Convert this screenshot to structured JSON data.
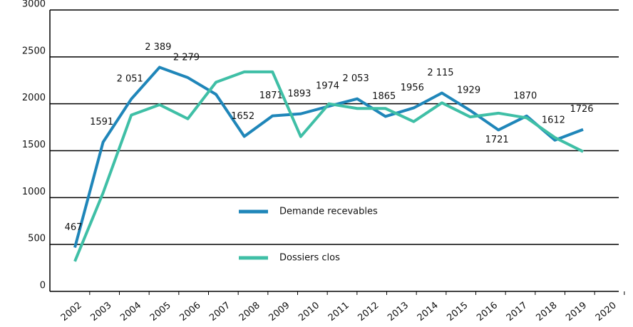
{
  "chart_data": {
    "type": "line",
    "categories": [
      "2002",
      "2003",
      "2004",
      "2005",
      "2006",
      "2007",
      "2008",
      "2009",
      "2010",
      "2011",
      "2012",
      "2013",
      "2014",
      "2015",
      "2016",
      "2017",
      "2018",
      "2019",
      "2020"
    ],
    "series": [
      {
        "name": "Demande recevables",
        "color": "#1f86b9",
        "values": [
          467,
          1591,
          2051,
          2389,
          2279,
          2100,
          1652,
          1871,
          1893,
          1974,
          2053,
          1865,
          1956,
          2115,
          1929,
          1721,
          1870,
          1612,
          1726
        ],
        "value_labels": [
          "467",
          "1591",
          "2 051",
          "2 389",
          "2 279",
          null,
          "1652",
          "1871",
          "1893",
          "1974",
          "2 053",
          "1865",
          "1956",
          "2 115",
          "1929",
          "1721",
          "1870",
          "1612",
          "1726"
        ]
      },
      {
        "name": "Dossiers clos",
        "color": "#3fbfa6",
        "values": [
          320,
          1050,
          1880,
          1990,
          1840,
          2230,
          2340,
          2340,
          1650,
          2000,
          1950,
          1950,
          1810,
          2010,
          1860,
          1900,
          1850,
          1640,
          1490
        ]
      }
    ],
    "ylim": [
      0,
      3000
    ],
    "yticks": [
      0,
      500,
      1000,
      1500,
      2000,
      2500,
      3000
    ],
    "grid": true
  }
}
